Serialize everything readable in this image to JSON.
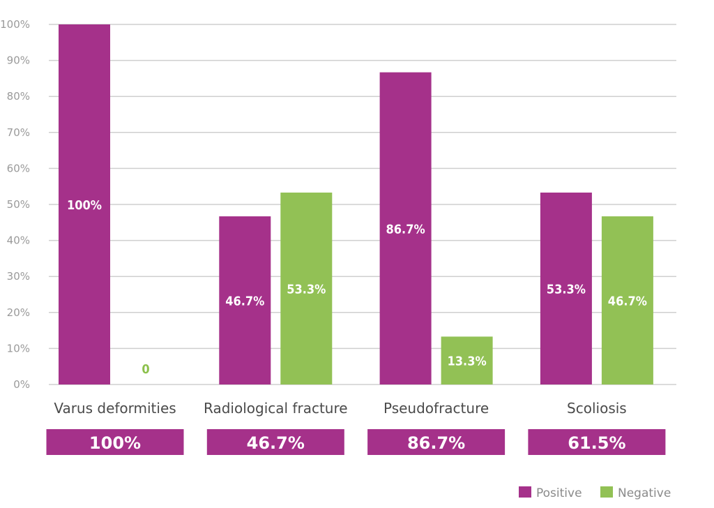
{
  "chart_data": {
    "type": "bar",
    "title": "",
    "xlabel": "",
    "ylabel": "",
    "ylim": [
      0,
      100
    ],
    "y_ticks": [
      0,
      10,
      20,
      30,
      40,
      50,
      60,
      70,
      80,
      90,
      100
    ],
    "y_tick_labels": [
      "0%",
      "10%",
      "20%",
      "30%",
      "40%",
      "50%",
      "60%",
      "70%",
      "80%",
      "90%",
      "100%"
    ],
    "grid": true,
    "categories": [
      "Varus deformities",
      "Radiological fracture",
      "Pseudofracture",
      "Scoliosis"
    ],
    "series": [
      {
        "name": "Positive",
        "color": "#a5318a",
        "values": [
          100,
          46.7,
          86.7,
          53.3
        ],
        "data_labels": [
          "100%",
          "46.7%",
          "86.7%",
          "53.3%"
        ]
      },
      {
        "name": "Negative",
        "color": "#92c155",
        "values": [
          0,
          53.3,
          13.3,
          46.7
        ],
        "data_labels": [
          "0",
          "53.3%",
          "13.3%",
          "46.7%"
        ]
      }
    ],
    "summary_boxes": [
      "100%",
      "46.7%",
      "86.7%",
      "61.5%"
    ],
    "summary_box_color": "#a5318a",
    "legend": {
      "placement": "bottom-right",
      "entries": [
        "Positive",
        "Negative"
      ]
    }
  }
}
